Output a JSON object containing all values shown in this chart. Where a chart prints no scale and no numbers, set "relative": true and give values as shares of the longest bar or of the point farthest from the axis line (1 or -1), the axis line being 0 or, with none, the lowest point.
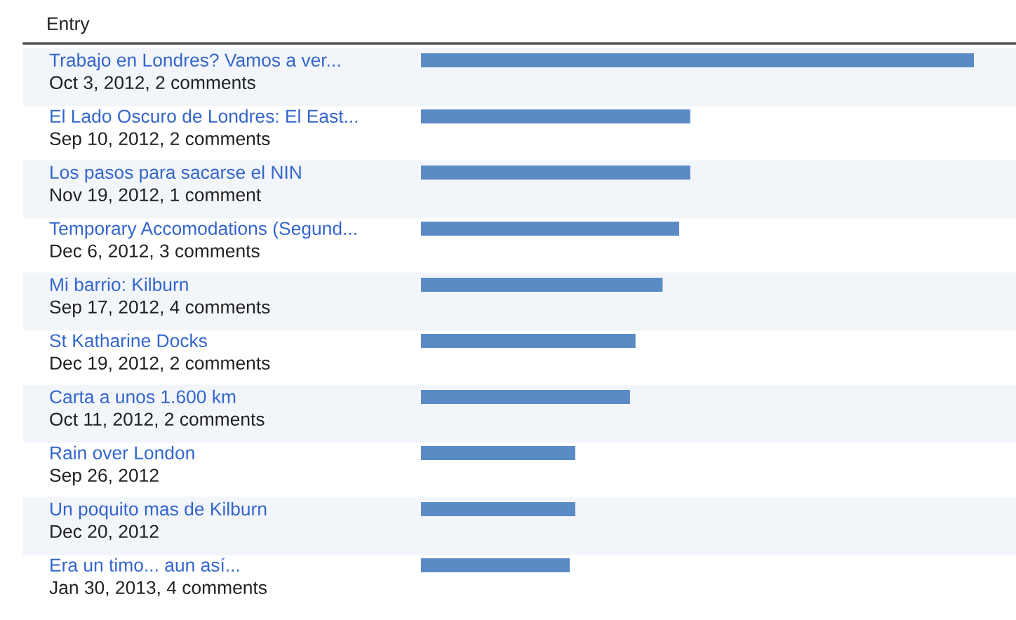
{
  "chart_data": {
    "type": "bar",
    "orientation": "horizontal",
    "relative": true,
    "title": "Entry",
    "color": "#5b8bc4",
    "categories": [
      "Trabajo en Londres? Vamos a ver...\nOct 3, 2012, 2 comments",
      "El Lado Oscuro de Londres: El East...\nSep 10, 2012, 2 comments",
      "Los pasos para sacarse el NIN\nNov 19, 2012, 1 comment",
      "Temporary Accomodations (Segund...\nDec 6, 2012, 3 comments",
      "Mi barrio: Kilburn\nSep 17, 2012, 4 comments",
      "St Katharine Docks\nDec 19, 2012, 2 comments",
      "Carta a unos 1.600 km\nOct 11, 2012, 2 comments",
      "Rain over London\nSep 26, 2012",
      "Un poquito mas de Kilburn\nDec 20, 2012",
      "Era un timo... aun así...\nJan 30, 2013, 4 comments"
    ],
    "values": [
      1,
      0.487,
      0.487,
      0.467,
      0.437,
      0.388,
      0.378,
      0.279,
      0.279,
      0.269
    ],
    "legend": false
  }
}
